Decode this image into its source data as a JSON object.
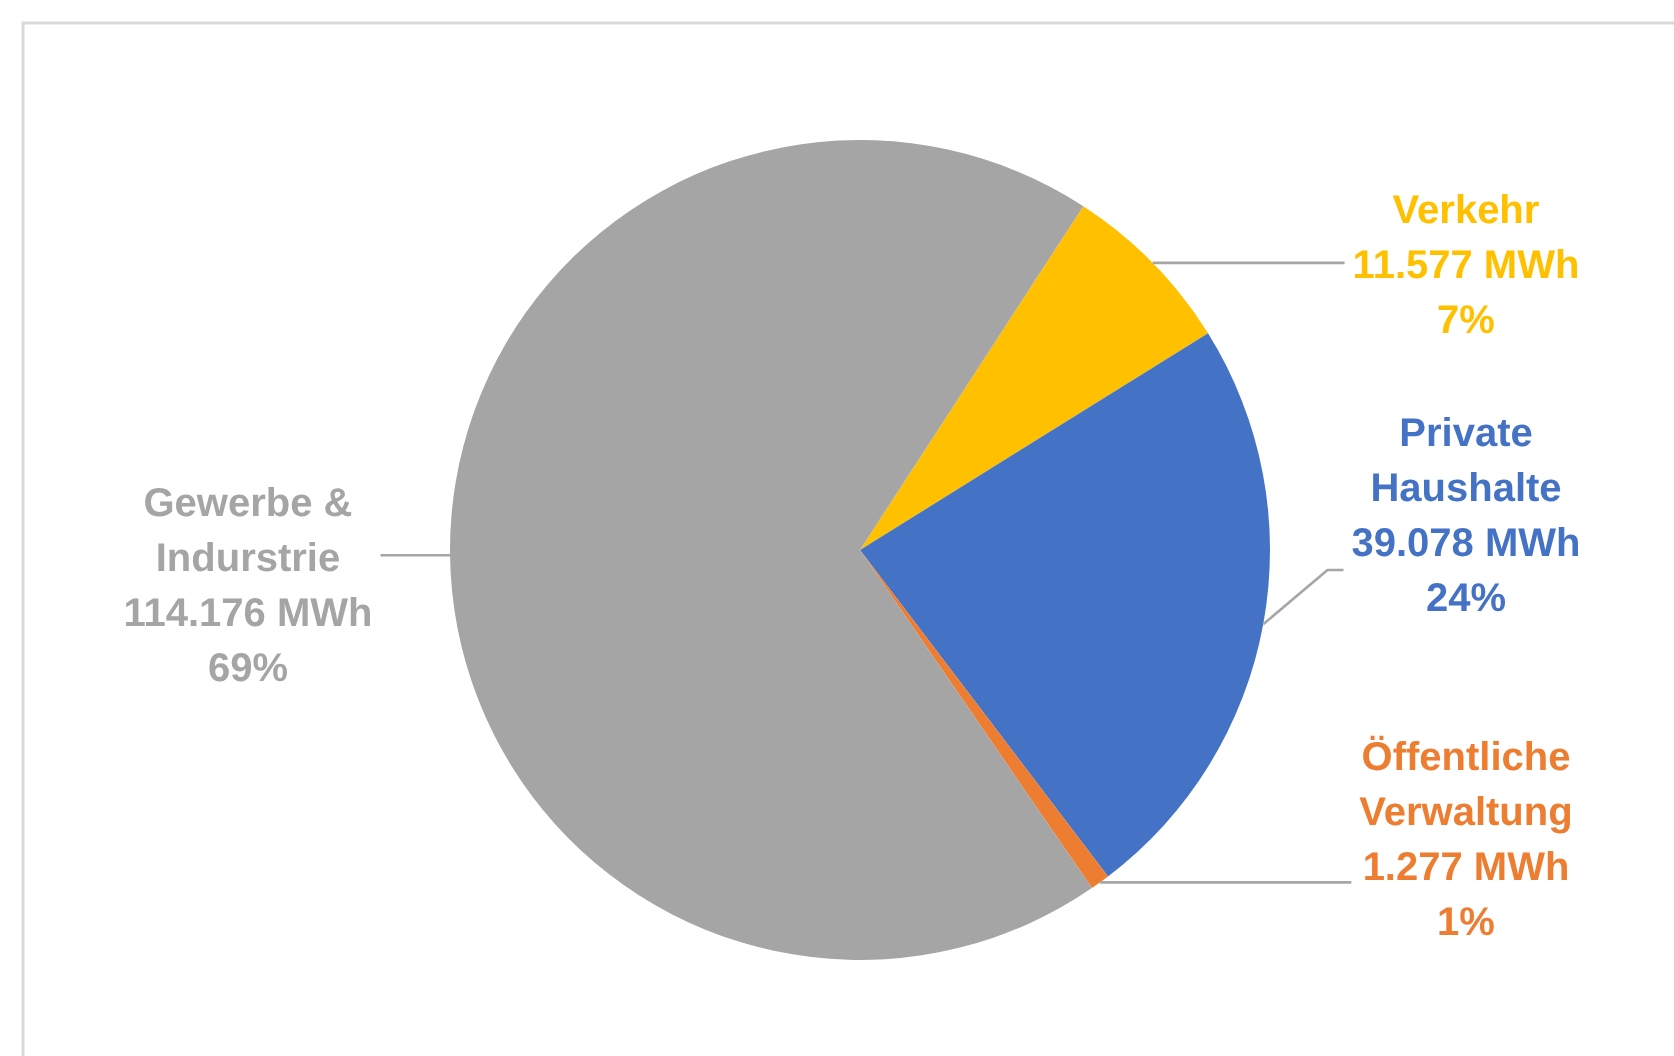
{
  "chart_data": {
    "type": "pie",
    "categories": [
      "Verkehr",
      "Private Haushalte",
      "Öffentliche Verwaltung",
      "Gewerbe & Indurstrie"
    ],
    "values": [
      11577,
      39078,
      1277,
      114176
    ],
    "colors": [
      "#ffc000",
      "#4472c4",
      "#ed7d31",
      "#a5a5a5"
    ],
    "value_labels": [
      "11.577 MWh\n7%",
      "39.078 MWh\n24%",
      "1.277 MWh\n1%",
      "114.176 MWh\n69%"
    ]
  }
}
